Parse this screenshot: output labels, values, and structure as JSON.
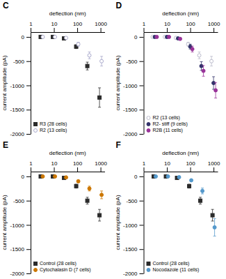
{
  "chart_data": [
    {
      "type": "scatter",
      "title": "C",
      "x_label": "deflection (nm)",
      "y_label": "current amplitude (pA)",
      "log": "x",
      "x": [
        3,
        10,
        30,
        100,
        300,
        1000
      ],
      "xlim": [
        1,
        1500
      ],
      "xticks": [
        1,
        10,
        100,
        1000
      ],
      "ylim": [
        -2000,
        100
      ],
      "yticks": [
        0,
        -500,
        -1000,
        -1500,
        -2000
      ],
      "legend": "lower left",
      "series": [
        {
          "name": "R3 (28 cells)",
          "color": "#2b2b2b",
          "marker": "square",
          "values": [
            0,
            0,
            -30,
            -200,
            -600,
            -1250
          ],
          "errors": [
            0,
            0,
            10,
            40,
            80,
            200
          ]
        },
        {
          "name": "R2 (13 cells)",
          "color": "#aaaacc",
          "marker": "open-circle",
          "values": [
            0,
            0,
            -20,
            -150,
            -380,
            -500
          ],
          "errors": [
            0,
            0,
            10,
            40,
            70,
            100
          ]
        }
      ]
    },
    {
      "type": "scatter",
      "title": "D",
      "x_label": "deflection (nm)",
      "y_label": "current amplitude (pA)",
      "log": "x",
      "x": [
        3,
        10,
        30,
        100,
        300,
        1000
      ],
      "xlim": [
        1,
        1500
      ],
      "xticks": [
        1,
        10,
        100,
        1000
      ],
      "ylim": [
        -2000,
        100
      ],
      "yticks": [
        0,
        -500,
        -1000,
        -1500,
        -2000
      ],
      "legend": "lower left",
      "series": [
        {
          "name": "R2 (13 cells)",
          "color": "#bbbbcc",
          "marker": "open-circle",
          "values": [
            0,
            0,
            -20,
            -150,
            -380,
            -500
          ],
          "errors": [
            0,
            0,
            10,
            40,
            70,
            100
          ]
        },
        {
          "name": "R2- stiff (9 cells)",
          "color": "#33336b",
          "marker": "circle",
          "values": [
            0,
            0,
            -30,
            -200,
            -600,
            -950
          ],
          "errors": [
            0,
            0,
            15,
            50,
            90,
            130
          ]
        },
        {
          "name": "R2B (11 cells)",
          "color": "#993399",
          "marker": "circle",
          "values": [
            0,
            0,
            -40,
            -250,
            -700,
            -1100
          ],
          "errors": [
            0,
            0,
            20,
            60,
            110,
            160
          ]
        }
      ]
    },
    {
      "type": "scatter",
      "title": "E",
      "x_label": "deflection (nm)",
      "y_label": "current amplitude (pA)",
      "log": "x",
      "x": [
        3,
        10,
        30,
        100,
        300,
        1000
      ],
      "xlim": [
        1,
        1500
      ],
      "xticks": [
        1,
        10,
        100,
        1000
      ],
      "ylim": [
        -2000,
        100
      ],
      "yticks": [
        0,
        -500,
        -1000,
        -1500,
        -2000
      ],
      "legend": "lower left",
      "series": [
        {
          "name": "Control (28 cells)",
          "color": "#2b2b2b",
          "marker": "square",
          "values": [
            0,
            0,
            -30,
            -200,
            -500,
            -800
          ],
          "errors": [
            0,
            0,
            10,
            40,
            70,
            120
          ]
        },
        {
          "name": "Cytochalasin D (7 cells)",
          "color": "#cc7700",
          "marker": "circle",
          "values": [
            0,
            0,
            -20,
            -100,
            -250,
            -380
          ],
          "errors": [
            0,
            0,
            10,
            25,
            50,
            80
          ]
        }
      ]
    },
    {
      "type": "scatter",
      "title": "F",
      "x_label": "deflection (nm)",
      "y_label": "current amplitude (pA)",
      "log": "x",
      "x": [
        3,
        10,
        30,
        100,
        300,
        1000
      ],
      "xlim": [
        1,
        1500
      ],
      "xticks": [
        1,
        10,
        100,
        1000
      ],
      "ylim": [
        -2000,
        100
      ],
      "yticks": [
        0,
        -500,
        -1000,
        -1500,
        -2000
      ],
      "legend": "lower left",
      "series": [
        {
          "name": "Control (28 cells)",
          "color": "#2b2b2b",
          "marker": "square",
          "values": [
            0,
            0,
            -30,
            -200,
            -500,
            -800
          ],
          "errors": [
            0,
            0,
            10,
            40,
            70,
            120
          ]
        },
        {
          "name": "Nocodazole (11 cells)",
          "color": "#5599cc",
          "marker": "circle",
          "values": [
            0,
            0,
            -15,
            -80,
            -300,
            -1050
          ],
          "errors": [
            0,
            0,
            10,
            20,
            60,
            180
          ]
        }
      ]
    }
  ]
}
